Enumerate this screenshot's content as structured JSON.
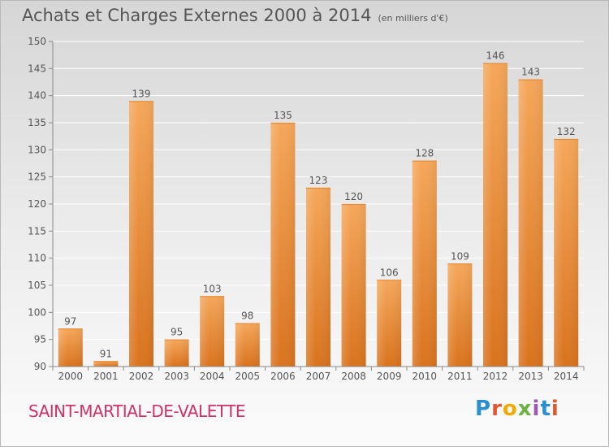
{
  "title": "Achats et Charges Externes 2000 à 2014",
  "subtitle": "(en milliers d'€)",
  "commune": "SAINT-MARTIAL-DE-VALETTE",
  "brand": [
    "P",
    "r",
    "o",
    "x",
    "i",
    "t",
    "i"
  ],
  "chart_data": {
    "type": "bar",
    "categories": [
      "2000",
      "2001",
      "2002",
      "2003",
      "2004",
      "2005",
      "2006",
      "2007",
      "2008",
      "2009",
      "2010",
      "2011",
      "2012",
      "2013",
      "2014"
    ],
    "values": [
      97,
      91,
      139,
      95,
      103,
      98,
      135,
      123,
      120,
      106,
      128,
      109,
      146,
      143,
      132
    ],
    "ylim": [
      90,
      150
    ],
    "yticks": [
      90,
      95,
      100,
      105,
      110,
      115,
      120,
      125,
      130,
      135,
      140,
      145,
      150
    ],
    "grid": true,
    "colors": {
      "bar_top": "#f5a75a",
      "bar_bottom": "#d9731e",
      "text": "#555555",
      "grid": "#ffffff"
    }
  }
}
